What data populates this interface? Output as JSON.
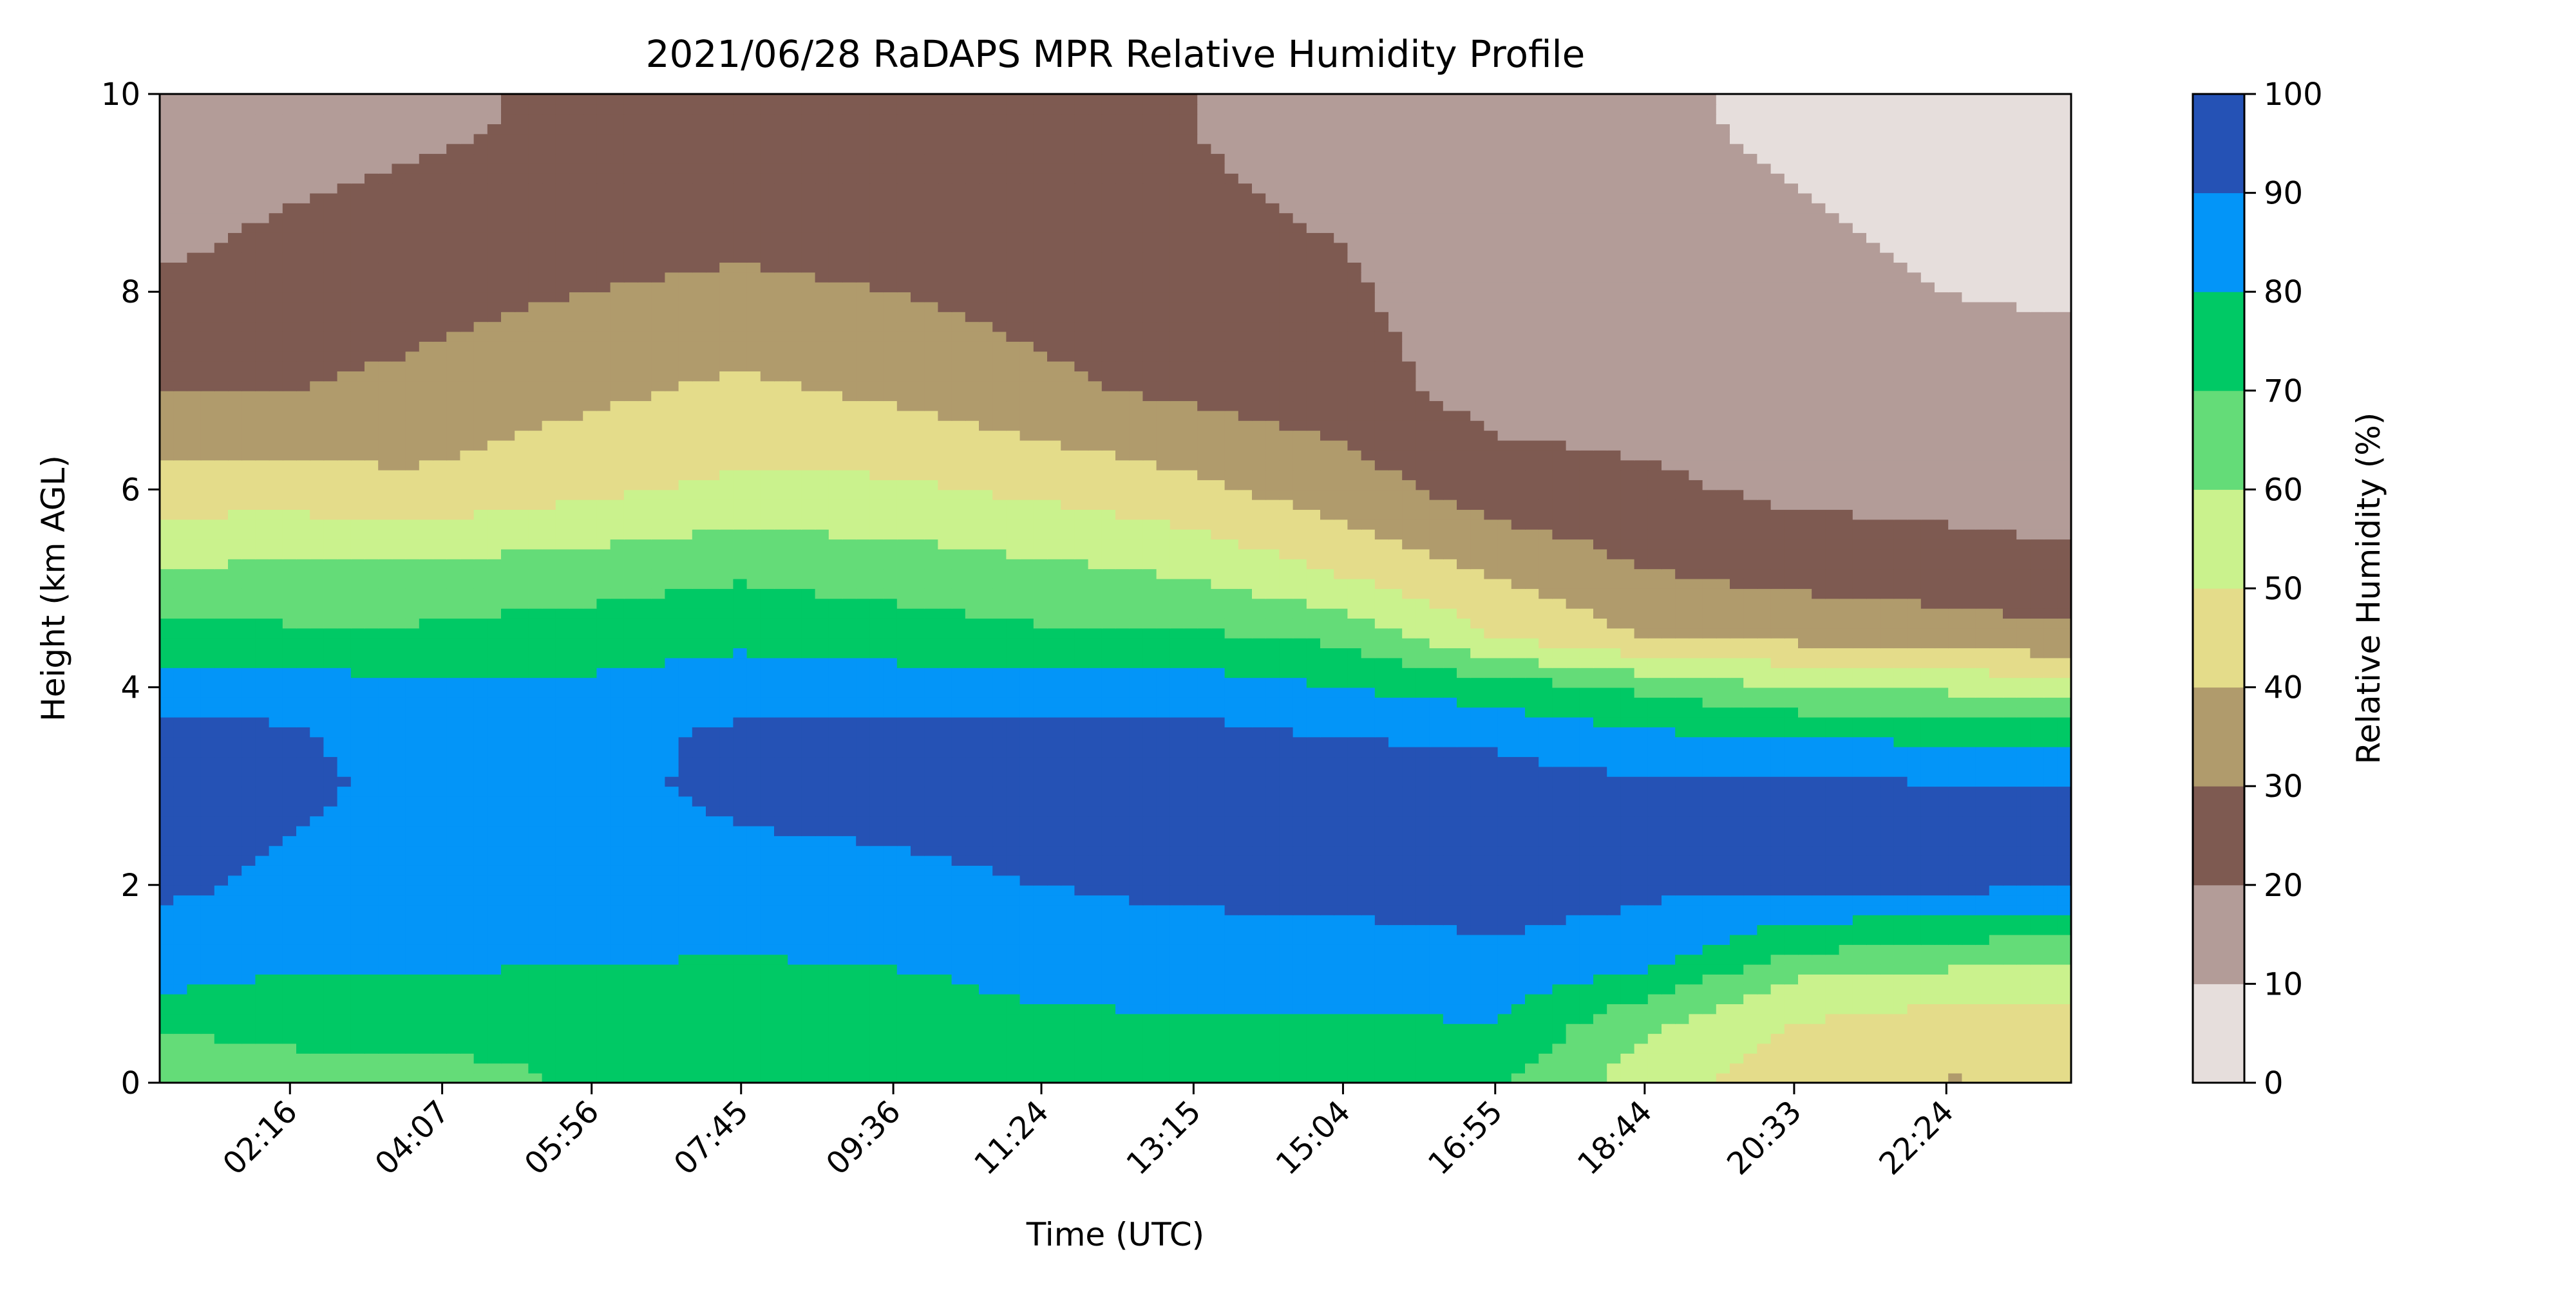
{
  "chart_data": {
    "type": "heatmap",
    "title": "2021/06/28 RaDAPS MPR Relative Humidity Profile",
    "xlabel": "Time (UTC)",
    "ylabel": "Height (km AGL)",
    "xlim": [
      "00:41",
      "23:55"
    ],
    "ylim": [
      0,
      10
    ],
    "x_ticks": [
      "02:16",
      "04:07",
      "05:56",
      "07:45",
      "09:36",
      "11:24",
      "13:15",
      "15:04",
      "16:55",
      "18:44",
      "20:33",
      "22:24"
    ],
    "y_ticks": [
      "0",
      "2",
      "4",
      "6",
      "8",
      "10"
    ],
    "colorbar": {
      "label": "Relative Humidity (%)",
      "levels": [
        0,
        10,
        20,
        30,
        40,
        50,
        60,
        70,
        80,
        90,
        100
      ],
      "tick_labels": [
        "0",
        "10",
        "20",
        "30",
        "40",
        "50",
        "60",
        "70",
        "80",
        "90",
        "100"
      ],
      "colors": [
        "#e6dedc",
        "#b39c98",
        "#7e5a51",
        "#b09b6c",
        "#e4dc8a",
        "#caf28d",
        "#64dc78",
        "#00c965",
        "#0395f8",
        "#2552b5"
      ]
    },
    "profile_time": [
      "00:41",
      "02:16",
      "03:42",
      "05:56",
      "07:45",
      "09:36",
      "11:24",
      "13:15",
      "15:04",
      "16:55",
      "18:44",
      "20:33",
      "22:24",
      "23:55"
    ],
    "profile_height_km": [
      0.1,
      0.6,
      1.0,
      1.3,
      2.0,
      3.0,
      3.5,
      4.0,
      4.5,
      5.2,
      6.0,
      7.0,
      8.5,
      9.7
    ],
    "relative_humidity_pct": [
      [
        60,
        65,
        65,
        72,
        70,
        75,
        75,
        72,
        75,
        72,
        55,
        45,
        40,
        40
      ],
      [
        72,
        75,
        76,
        75,
        75,
        75,
        78,
        78,
        78,
        80,
        62,
        50,
        45,
        45
      ],
      [
        82,
        78,
        78,
        75,
        77,
        78,
        82,
        85,
        85,
        85,
        75,
        58,
        55,
        55
      ],
      [
        85,
        84,
        85,
        82,
        80,
        82,
        85,
        86,
        86,
        88,
        85,
        70,
        65,
        62
      ],
      [
        92,
        88,
        85,
        85,
        87,
        88,
        90,
        92,
        93,
        95,
        92,
        92,
        92,
        92
      ],
      [
        95,
        92,
        88,
        88,
        92,
        93,
        95,
        95,
        95,
        95,
        92,
        92,
        91,
        91
      ],
      [
        93,
        92,
        85,
        85,
        93,
        93,
        94,
        93,
        90,
        88,
        82,
        80,
        78,
        77
      ],
      [
        85,
        85,
        82,
        82,
        85,
        85,
        85,
        85,
        80,
        75,
        68,
        60,
        58,
        55
      ],
      [
        75,
        72,
        72,
        75,
        78,
        75,
        72,
        72,
        68,
        50,
        40,
        38,
        35,
        32
      ],
      [
        60,
        62,
        62,
        65,
        68,
        65,
        62,
        58,
        48,
        38,
        30,
        26,
        24,
        22
      ],
      [
        45,
        45,
        42,
        48,
        52,
        52,
        48,
        42,
        35,
        25,
        22,
        18,
        17,
        16
      ],
      [
        30,
        30,
        32,
        38,
        42,
        38,
        32,
        28,
        24,
        16,
        15,
        14,
        12,
        12
      ],
      [
        18,
        22,
        24,
        26,
        28,
        26,
        24,
        22,
        20,
        14,
        12,
        11,
        9,
        8
      ],
      [
        14,
        16,
        18,
        22,
        22,
        22,
        22,
        20,
        16,
        12,
        11,
        9,
        8,
        7
      ]
    ]
  }
}
